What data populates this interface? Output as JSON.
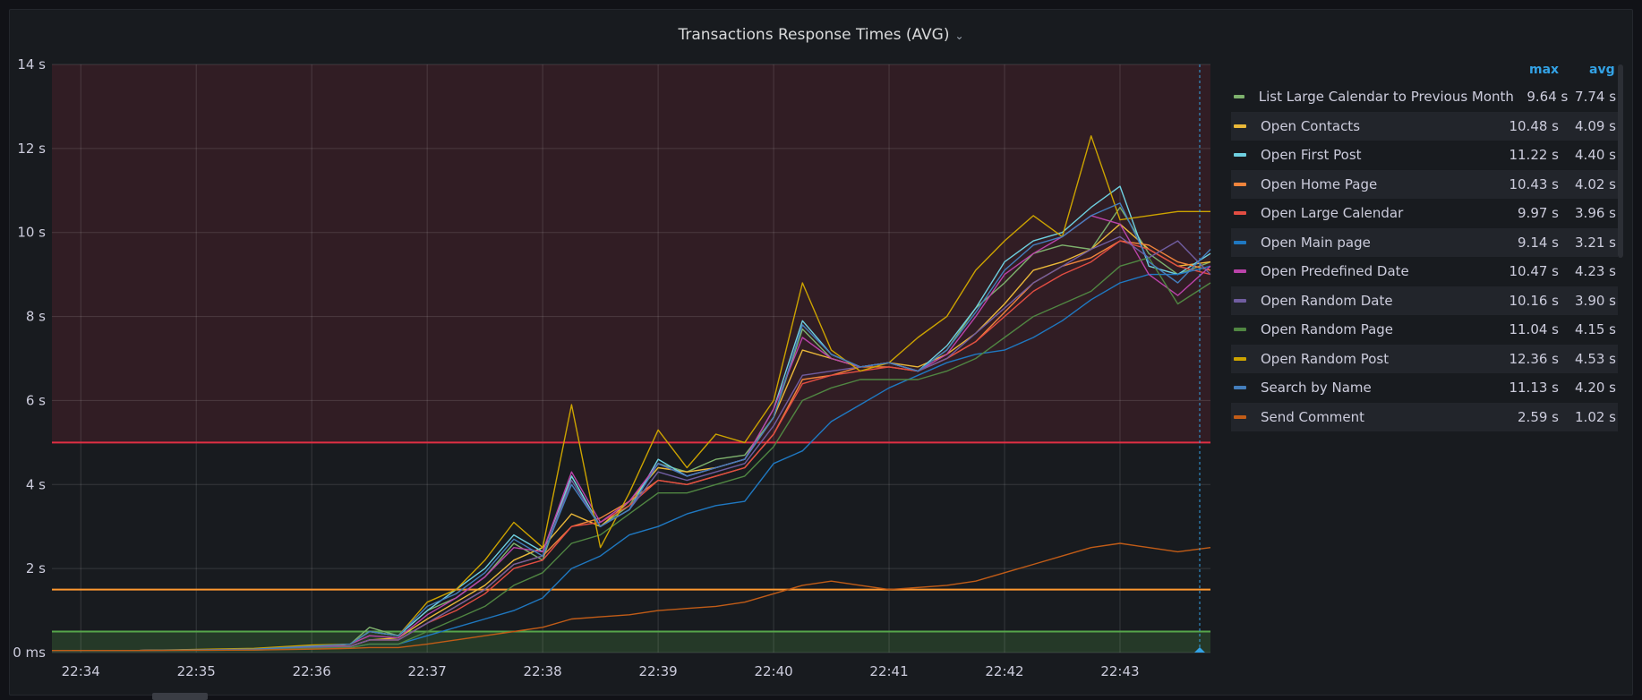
{
  "panel": {
    "title": "Transactions Response Times (AVG)"
  },
  "legend": {
    "headers": {
      "max": "max",
      "avg": "avg"
    },
    "items": [
      {
        "name": "List Large Calendar to Previous Month",
        "max": "9.64 s",
        "avg": "7.74 s",
        "color": "#7eb26d"
      },
      {
        "name": "Open Contacts",
        "max": "10.48 s",
        "avg": "4.09 s",
        "color": "#eab839"
      },
      {
        "name": "Open First Post",
        "max": "11.22 s",
        "avg": "4.40 s",
        "color": "#6ed0e0"
      },
      {
        "name": "Open Home Page",
        "max": "10.43 s",
        "avg": "4.02 s",
        "color": "#ef843c"
      },
      {
        "name": "Open Large Calendar",
        "max": "9.97 s",
        "avg": "3.96 s",
        "color": "#e24d42"
      },
      {
        "name": "Open Main page",
        "max": "9.14 s",
        "avg": "3.21 s",
        "color": "#1f78c1"
      },
      {
        "name": "Open Predefined Date",
        "max": "10.47 s",
        "avg": "4.23 s",
        "color": "#ba43a9"
      },
      {
        "name": "Open Random Date",
        "max": "10.16 s",
        "avg": "3.90 s",
        "color": "#705da0"
      },
      {
        "name": "Open Random Page",
        "max": "11.04 s",
        "avg": "4.15 s",
        "color": "#508642"
      },
      {
        "name": "Open Random Post",
        "max": "12.36 s",
        "avg": "4.53 s",
        "color": "#cca300"
      },
      {
        "name": "Search by Name",
        "max": "11.13 s",
        "avg": "4.20 s",
        "color": "#447ebc"
      },
      {
        "name": "Send Comment",
        "max": "2.59 s",
        "avg": "1.02 s",
        "color": "#c15c17"
      }
    ]
  },
  "chart_data": {
    "type": "line",
    "title": "Transactions Response Times (AVG)",
    "y_unit": "s",
    "ylim": [
      0,
      14
    ],
    "y_ticks": [
      "0 ms",
      "2 s",
      "4 s",
      "6 s",
      "8 s",
      "10 s",
      "12 s",
      "14 s"
    ],
    "x_ticks": [
      "22:34",
      "22:35",
      "22:36",
      "22:37",
      "22:38",
      "22:39",
      "22:40",
      "22:41",
      "22:42",
      "22:43"
    ],
    "xlim": [
      "22:33:45",
      "22:43:47"
    ],
    "grid": true,
    "legend_placement": "right",
    "thresholds": [
      {
        "from": 5,
        "to": 14,
        "color": "#e02f44",
        "fill": true
      },
      {
        "from": 0,
        "to": 0.5,
        "color": "#56a64b",
        "fill": true
      },
      {
        "at": 1.5,
        "color": "#ff9830",
        "fill": false
      }
    ],
    "x": [
      "22:33:45",
      "22:34:30",
      "22:35:30",
      "22:36:00",
      "22:36:20",
      "22:36:30",
      "22:36:45",
      "22:37:00",
      "22:37:15",
      "22:37:30",
      "22:37:45",
      "22:38:00",
      "22:38:15",
      "22:38:30",
      "22:38:45",
      "22:39:00",
      "22:39:15",
      "22:39:30",
      "22:39:45",
      "22:40:00",
      "22:40:15",
      "22:40:30",
      "22:40:45",
      "22:41:00",
      "22:41:15",
      "22:41:30",
      "22:41:45",
      "22:42:00",
      "22:42:15",
      "22:42:30",
      "22:42:45",
      "22:43:00",
      "22:43:15",
      "22:43:30",
      "22:43:47"
    ],
    "series": [
      {
        "name": "List Large Calendar to Previous Month",
        "color": "#7eb26d",
        "values": [
          0.05,
          0.05,
          0.08,
          0.15,
          0.2,
          0.6,
          0.4,
          1.0,
          1.3,
          1.8,
          2.6,
          2.2,
          4.2,
          3.0,
          3.5,
          4.5,
          4.3,
          4.6,
          4.7,
          5.6,
          7.7,
          7.0,
          6.8,
          6.9,
          6.7,
          7.2,
          8.2,
          8.8,
          9.5,
          9.7,
          9.6,
          10.6,
          9.5,
          9.0,
          9.3
        ]
      },
      {
        "name": "Open Contacts",
        "color": "#eab839",
        "values": [
          0.05,
          0.05,
          0.08,
          0.15,
          0.15,
          0.3,
          0.35,
          0.8,
          1.2,
          1.6,
          2.2,
          2.5,
          3.3,
          3.0,
          3.6,
          4.4,
          4.3,
          4.4,
          4.6,
          5.6,
          7.2,
          7.0,
          6.8,
          6.9,
          6.8,
          7.1,
          7.6,
          8.3,
          9.1,
          9.3,
          9.6,
          10.2,
          9.6,
          9.2,
          9.3
        ]
      },
      {
        "name": "Open First Post",
        "color": "#6ed0e0",
        "values": [
          0.05,
          0.05,
          0.08,
          0.15,
          0.2,
          0.5,
          0.4,
          1.0,
          1.5,
          2.0,
          2.8,
          2.4,
          4.2,
          3.0,
          3.4,
          4.6,
          4.2,
          4.4,
          4.6,
          5.8,
          7.9,
          7.1,
          6.8,
          6.9,
          6.7,
          7.3,
          8.2,
          9.3,
          9.8,
          10.0,
          10.6,
          11.1,
          9.2,
          9.0,
          9.5
        ]
      },
      {
        "name": "Open Home Page",
        "color": "#ef843c",
        "values": [
          0.05,
          0.05,
          0.08,
          0.15,
          0.15,
          0.3,
          0.3,
          0.7,
          1.1,
          1.5,
          2.1,
          2.3,
          3.0,
          3.2,
          3.6,
          4.1,
          4.0,
          4.2,
          4.4,
          5.2,
          6.5,
          6.6,
          6.8,
          6.8,
          6.7,
          7.0,
          7.4,
          8.1,
          8.8,
          9.2,
          9.4,
          9.8,
          9.7,
          9.3,
          9.1
        ]
      },
      {
        "name": "Open Large Calendar",
        "color": "#e24d42",
        "values": [
          0.05,
          0.05,
          0.08,
          0.15,
          0.15,
          0.3,
          0.3,
          0.7,
          1.0,
          1.4,
          2.0,
          2.2,
          3.0,
          3.1,
          3.5,
          4.1,
          4.0,
          4.2,
          4.4,
          5.2,
          6.4,
          6.6,
          6.7,
          6.8,
          6.7,
          7.0,
          7.4,
          8.0,
          8.6,
          9.0,
          9.3,
          9.8,
          9.6,
          9.2,
          9.0
        ]
      },
      {
        "name": "Open Main page",
        "color": "#1f78c1",
        "values": [
          0.05,
          0.05,
          0.06,
          0.1,
          0.12,
          0.2,
          0.2,
          0.4,
          0.6,
          0.8,
          1.0,
          1.3,
          2.0,
          2.3,
          2.8,
          3.0,
          3.3,
          3.5,
          3.6,
          4.5,
          4.8,
          5.5,
          5.9,
          6.3,
          6.6,
          6.9,
          7.1,
          7.2,
          7.5,
          7.9,
          8.4,
          8.8,
          9.0,
          9.0,
          9.2
        ]
      },
      {
        "name": "Open Predefined Date",
        "color": "#ba43a9",
        "values": [
          0.05,
          0.05,
          0.08,
          0.15,
          0.2,
          0.4,
          0.35,
          0.9,
          1.3,
          1.8,
          2.5,
          2.4,
          4.3,
          3.1,
          3.6,
          4.5,
          4.2,
          4.4,
          4.6,
          5.8,
          7.5,
          7.0,
          6.8,
          6.9,
          6.7,
          7.1,
          8.0,
          9.0,
          9.5,
          9.9,
          10.4,
          10.2,
          9.0,
          8.5,
          9.2
        ]
      },
      {
        "name": "Open Random Date",
        "color": "#705da0",
        "values": [
          0.05,
          0.05,
          0.08,
          0.12,
          0.15,
          0.3,
          0.3,
          0.7,
          1.1,
          1.5,
          2.1,
          2.3,
          4.1,
          3.0,
          3.4,
          4.3,
          4.1,
          4.3,
          4.5,
          5.4,
          6.6,
          6.7,
          6.8,
          6.9,
          6.7,
          7.0,
          7.6,
          8.2,
          8.8,
          9.2,
          9.6,
          9.9,
          9.4,
          9.8,
          9.0
        ]
      },
      {
        "name": "Open Random Page",
        "color": "#508642",
        "values": [
          0.05,
          0.05,
          0.06,
          0.1,
          0.12,
          0.2,
          0.2,
          0.5,
          0.8,
          1.1,
          1.6,
          1.9,
          2.6,
          2.8,
          3.3,
          3.8,
          3.8,
          4.0,
          4.2,
          4.9,
          6.0,
          6.3,
          6.5,
          6.5,
          6.5,
          6.7,
          7.0,
          7.5,
          8.0,
          8.3,
          8.6,
          9.2,
          9.4,
          8.3,
          8.8
        ]
      },
      {
        "name": "Open Random Post",
        "color": "#cca300",
        "values": [
          0.05,
          0.05,
          0.1,
          0.18,
          0.2,
          0.5,
          0.4,
          1.2,
          1.5,
          2.2,
          3.1,
          2.5,
          5.9,
          2.5,
          3.8,
          5.3,
          4.4,
          5.2,
          5.0,
          6.0,
          8.8,
          7.2,
          6.7,
          6.9,
          7.5,
          8.0,
          9.1,
          9.8,
          10.4,
          9.9,
          12.3,
          10.3,
          10.4,
          10.5,
          10.5
        ]
      },
      {
        "name": "Search by Name",
        "color": "#447ebc",
        "values": [
          0.05,
          0.05,
          0.08,
          0.15,
          0.2,
          0.5,
          0.4,
          1.1,
          1.4,
          1.9,
          2.7,
          2.3,
          4.0,
          3.0,
          3.4,
          4.5,
          4.2,
          4.4,
          4.6,
          5.6,
          7.8,
          7.1,
          6.8,
          6.9,
          6.7,
          7.2,
          8.1,
          9.1,
          9.7,
          9.9,
          10.4,
          10.7,
          9.3,
          8.8,
          9.6
        ]
      },
      {
        "name": "Send Comment",
        "color": "#c15c17",
        "values": [
          0.05,
          0.05,
          0.06,
          0.08,
          0.1,
          0.12,
          0.12,
          0.2,
          0.3,
          0.4,
          0.5,
          0.6,
          0.8,
          0.85,
          0.9,
          1.0,
          1.05,
          1.1,
          1.2,
          1.4,
          1.6,
          1.7,
          1.6,
          1.5,
          1.55,
          1.6,
          1.7,
          1.9,
          2.1,
          2.3,
          2.5,
          2.6,
          2.5,
          2.4,
          2.5
        ]
      }
    ]
  }
}
